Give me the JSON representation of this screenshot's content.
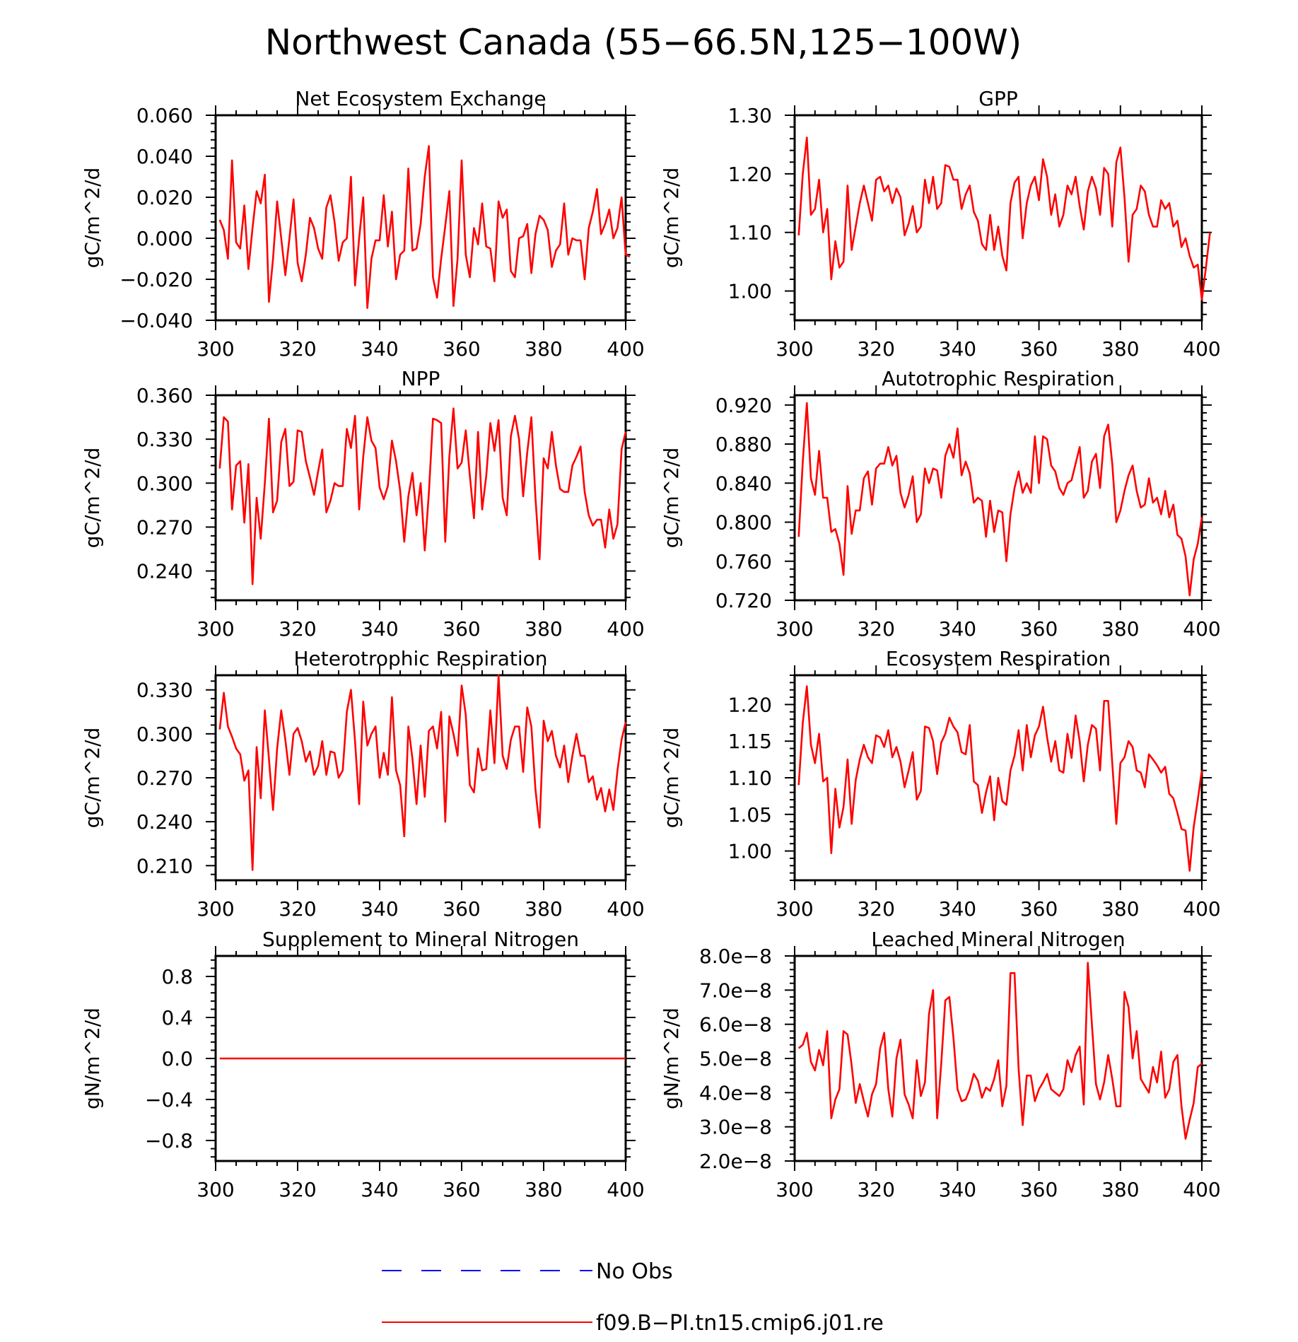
{
  "title": "Northwest Canada (55−66.5N,125−100W)",
  "legend": [
    {
      "label": "No Obs",
      "color": "#0000ff",
      "style": "dashed"
    },
    {
      "label": "f09.B−PI.tn15.cmip6.j01.re",
      "color": "#ff0000",
      "style": "solid"
    }
  ],
  "chart_data": [
    {
      "type": "line",
      "title": "Net Ecosystem Exchange",
      "ylabel": "gC/m^2/d",
      "xlim": [
        300,
        400
      ],
      "ylim": [
        -0.04,
        0.06
      ],
      "xticks": [
        "300",
        "320",
        "340",
        "360",
        "380",
        "400"
      ],
      "yticks": [
        "−0.040",
        "−0.020",
        "0.000",
        "0.020",
        "0.040",
        "0.060"
      ],
      "x_start": 301,
      "series": [
        {
          "color": "#ff0000",
          "values": [
            0.009,
            0.004,
            -0.01,
            0.038,
            -0.002,
            -0.005,
            0.016,
            -0.015,
            0.005,
            0.023,
            0.017,
            0.031,
            -0.031,
            -0.01,
            0.018,
            0.0,
            -0.018,
            0.0,
            0.019,
            -0.012,
            -0.021,
            -0.008,
            0.01,
            0.005,
            -0.005,
            -0.01,
            0.015,
            0.021,
            0.008,
            -0.011,
            -0.002,
            0.0,
            0.03,
            -0.023,
            0.0,
            0.02,
            -0.034,
            -0.01,
            -0.001,
            -0.001,
            0.021,
            -0.004,
            0.013,
            -0.02,
            -0.008,
            -0.006,
            0.034,
            -0.006,
            -0.005,
            0.007,
            0.03,
            0.045,
            -0.019,
            -0.029,
            -0.01,
            0.006,
            0.023,
            -0.033,
            -0.01,
            0.038,
            -0.008,
            -0.019,
            0.005,
            -0.003,
            0.017,
            -0.004,
            -0.005,
            -0.021,
            0.018,
            0.01,
            0.014,
            -0.016,
            -0.019,
            0.0,
            0.001,
            0.007,
            -0.017,
            0.002,
            0.011,
            0.009,
            0.004,
            -0.014,
            -0.006,
            -0.003,
            0.017,
            -0.008,
            0.0,
            -0.001,
            -0.001,
            -0.02,
            0.005,
            0.013,
            0.024,
            0.002,
            0.007,
            0.014,
            0.0,
            0.005,
            0.02,
            -0.008,
            -0.009
          ]
        }
      ]
    },
    {
      "type": "line",
      "title": "GPP",
      "ylabel": "gC/m^2/d",
      "xlim": [
        300,
        400
      ],
      "ylim": [
        0.95,
        1.3
      ],
      "xticks": [
        "300",
        "320",
        "340",
        "360",
        "380",
        "400"
      ],
      "yticks": [
        "1.00",
        "1.10",
        "1.20",
        "1.30"
      ],
      "x_start": 301,
      "series": [
        {
          "color": "#ff0000",
          "values": [
            1.095,
            1.2,
            1.262,
            1.13,
            1.14,
            1.19,
            1.1,
            1.14,
            1.02,
            1.085,
            1.04,
            1.05,
            1.18,
            1.07,
            1.11,
            1.15,
            1.18,
            1.15,
            1.12,
            1.19,
            1.195,
            1.17,
            1.18,
            1.15,
            1.175,
            1.16,
            1.095,
            1.115,
            1.145,
            1.1,
            1.11,
            1.19,
            1.15,
            1.195,
            1.14,
            1.15,
            1.215,
            1.212,
            1.19,
            1.19,
            1.14,
            1.165,
            1.18,
            1.135,
            1.12,
            1.08,
            1.07,
            1.13,
            1.07,
            1.11,
            1.06,
            1.035,
            1.15,
            1.185,
            1.195,
            1.09,
            1.15,
            1.18,
            1.195,
            1.155,
            1.225,
            1.195,
            1.13,
            1.165,
            1.11,
            1.13,
            1.18,
            1.165,
            1.195,
            1.145,
            1.105,
            1.17,
            1.195,
            1.175,
            1.13,
            1.21,
            1.2,
            1.11,
            1.22,
            1.245,
            1.16,
            1.05,
            1.13,
            1.14,
            1.18,
            1.17,
            1.13,
            1.11,
            1.11,
            1.155,
            1.14,
            1.15,
            1.11,
            1.12,
            1.075,
            1.09,
            1.06,
            1.04,
            1.045,
            0.985,
            1.04,
            1.1
          ]
        }
      ]
    },
    {
      "type": "line",
      "title": "NPP",
      "ylabel": "gC/m^2/d",
      "xlim": [
        300,
        400
      ],
      "ylim": [
        0.22,
        0.36
      ],
      "xticks": [
        "300",
        "320",
        "340",
        "360",
        "380",
        "400"
      ],
      "yticks": [
        "0.240",
        "0.270",
        "0.300",
        "0.330",
        "0.360"
      ],
      "x_start": 301,
      "series": [
        {
          "color": "#ff0000",
          "values": [
            0.31,
            0.345,
            0.342,
            0.282,
            0.312,
            0.315,
            0.273,
            0.313,
            0.231,
            0.29,
            0.262,
            0.3,
            0.344,
            0.28,
            0.288,
            0.328,
            0.337,
            0.298,
            0.301,
            0.336,
            0.335,
            0.315,
            0.304,
            0.292,
            0.308,
            0.323,
            0.28,
            0.288,
            0.3,
            0.298,
            0.298,
            0.337,
            0.324,
            0.346,
            0.282,
            0.318,
            0.345,
            0.329,
            0.324,
            0.297,
            0.289,
            0.298,
            0.329,
            0.315,
            0.295,
            0.26,
            0.291,
            0.307,
            0.278,
            0.3,
            0.254,
            0.293,
            0.344,
            0.343,
            0.341,
            0.26,
            0.318,
            0.351,
            0.31,
            0.314,
            0.336,
            0.305,
            0.276,
            0.335,
            0.282,
            0.305,
            0.341,
            0.322,
            0.343,
            0.29,
            0.278,
            0.332,
            0.346,
            0.33,
            0.291,
            0.321,
            0.345,
            0.29,
            0.248,
            0.317,
            0.31,
            0.335,
            0.312,
            0.296,
            0.294,
            0.294,
            0.312,
            0.318,
            0.325,
            0.294,
            0.278,
            0.271,
            0.275,
            0.275,
            0.256,
            0.282,
            0.262,
            0.272,
            0.323,
            0.335
          ]
        }
      ]
    },
    {
      "type": "line",
      "title": "Autotrophic Respiration",
      "ylabel": "gC/m^2/d",
      "xlim": [
        300,
        400
      ],
      "ylim": [
        0.72,
        0.93
      ],
      "xticks": [
        "300",
        "320",
        "340",
        "360",
        "380",
        "400"
      ],
      "yticks": [
        "0.720",
        "0.760",
        "0.800",
        "0.840",
        "0.880",
        "0.920"
      ],
      "x_start": 301,
      "series": [
        {
          "color": "#ff0000",
          "values": [
            0.785,
            0.862,
            0.922,
            0.845,
            0.828,
            0.873,
            0.825,
            0.825,
            0.79,
            0.793,
            0.778,
            0.746,
            0.837,
            0.788,
            0.812,
            0.812,
            0.845,
            0.852,
            0.818,
            0.855,
            0.86,
            0.86,
            0.877,
            0.858,
            0.868,
            0.83,
            0.815,
            0.828,
            0.847,
            0.8,
            0.808,
            0.855,
            0.84,
            0.855,
            0.853,
            0.825,
            0.868,
            0.88,
            0.866,
            0.896,
            0.848,
            0.862,
            0.85,
            0.82,
            0.825,
            0.822,
            0.785,
            0.822,
            0.79,
            0.812,
            0.81,
            0.76,
            0.808,
            0.835,
            0.852,
            0.83,
            0.84,
            0.83,
            0.888,
            0.84,
            0.888,
            0.885,
            0.858,
            0.852,
            0.835,
            0.828,
            0.84,
            0.843,
            0.86,
            0.877,
            0.825,
            0.832,
            0.862,
            0.87,
            0.835,
            0.888,
            0.9,
            0.86,
            0.8,
            0.812,
            0.832,
            0.848,
            0.858,
            0.832,
            0.815,
            0.818,
            0.845,
            0.82,
            0.825,
            0.808,
            0.832,
            0.805,
            0.818,
            0.787,
            0.783,
            0.765,
            0.725,
            0.762,
            0.778,
            0.805
          ]
        }
      ]
    },
    {
      "type": "line",
      "title": "Heterotrophic Respiration",
      "ylabel": "gC/m^2/d",
      "xlim": [
        300,
        400
      ],
      "ylim": [
        0.2,
        0.34
      ],
      "xticks": [
        "300",
        "320",
        "340",
        "360",
        "380",
        "400"
      ],
      "yticks": [
        "0.210",
        "0.240",
        "0.270",
        "0.300",
        "0.330"
      ],
      "x_start": 301,
      "series": [
        {
          "color": "#ff0000",
          "values": [
            0.303,
            0.328,
            0.305,
            0.298,
            0.29,
            0.286,
            0.268,
            0.275,
            0.207,
            0.291,
            0.256,
            0.316,
            0.283,
            0.248,
            0.29,
            0.316,
            0.296,
            0.272,
            0.3,
            0.304,
            0.295,
            0.281,
            0.288,
            0.272,
            0.278,
            0.295,
            0.272,
            0.288,
            0.287,
            0.27,
            0.275,
            0.315,
            0.33,
            0.295,
            0.252,
            0.322,
            0.292,
            0.3,
            0.305,
            0.27,
            0.287,
            0.272,
            0.325,
            0.275,
            0.265,
            0.23,
            0.305,
            0.283,
            0.252,
            0.292,
            0.257,
            0.302,
            0.305,
            0.29,
            0.315,
            0.24,
            0.312,
            0.3,
            0.285,
            0.333,
            0.313,
            0.265,
            0.26,
            0.29,
            0.275,
            0.276,
            0.316,
            0.28,
            0.34,
            0.285,
            0.276,
            0.296,
            0.305,
            0.305,
            0.274,
            0.318,
            0.305,
            0.262,
            0.236,
            0.309,
            0.295,
            0.302,
            0.285,
            0.277,
            0.292,
            0.267,
            0.285,
            0.3,
            0.285,
            0.285,
            0.267,
            0.271,
            0.255,
            0.263,
            0.247,
            0.262,
            0.248,
            0.275,
            0.296,
            0.308
          ]
        }
      ]
    },
    {
      "type": "line",
      "title": "Ecosystem Respiration",
      "ylabel": "gC/m^2/d",
      "xlim": [
        300,
        400
      ],
      "ylim": [
        0.96,
        1.24
      ],
      "xticks": [
        "300",
        "320",
        "340",
        "360",
        "380",
        "400"
      ],
      "yticks": [
        "1.00",
        "1.05",
        "1.10",
        "1.15",
        "1.20"
      ],
      "x_start": 301,
      "series": [
        {
          "color": "#ff0000",
          "values": [
            1.09,
            1.175,
            1.225,
            1.145,
            1.12,
            1.16,
            1.095,
            1.1,
            0.997,
            1.085,
            1.032,
            1.06,
            1.125,
            1.037,
            1.097,
            1.125,
            1.145,
            1.128,
            1.12,
            1.158,
            1.155,
            1.142,
            1.165,
            1.128,
            1.142,
            1.122,
            1.087,
            1.11,
            1.135,
            1.07,
            1.082,
            1.17,
            1.168,
            1.15,
            1.105,
            1.148,
            1.16,
            1.182,
            1.17,
            1.162,
            1.135,
            1.132,
            1.172,
            1.095,
            1.09,
            1.052,
            1.08,
            1.102,
            1.042,
            1.1,
            1.068,
            1.063,
            1.11,
            1.13,
            1.165,
            1.11,
            1.172,
            1.128,
            1.158,
            1.17,
            1.197,
            1.155,
            1.122,
            1.15,
            1.11,
            1.107,
            1.16,
            1.127,
            1.185,
            1.15,
            1.095,
            1.145,
            1.172,
            1.167,
            1.11,
            1.205,
            1.205,
            1.12,
            1.037,
            1.12,
            1.128,
            1.15,
            1.142,
            1.11,
            1.107,
            1.087,
            1.132,
            1.125,
            1.117,
            1.107,
            1.115,
            1.078,
            1.072,
            1.052,
            1.03,
            1.028,
            0.973,
            1.033,
            1.07,
            1.11
          ]
        }
      ]
    },
    {
      "type": "line",
      "title": "Supplement to Mineral Nitrogen",
      "ylabel": "gN/m^2/d",
      "xlim": [
        300,
        400
      ],
      "ylim": [
        -1.0,
        1.0
      ],
      "xticks": [
        "300",
        "320",
        "340",
        "360",
        "380",
        "400"
      ],
      "yticks": [
        "−0.8",
        "−0.4",
        "0.0",
        "0.4",
        "0.8"
      ],
      "x_start": 301,
      "series": [
        {
          "color": "#ff0000",
          "values": [
            0,
            0,
            0,
            0,
            0,
            0,
            0,
            0,
            0,
            0,
            0,
            0,
            0,
            0,
            0,
            0,
            0,
            0,
            0,
            0,
            0,
            0,
            0,
            0,
            0,
            0,
            0,
            0,
            0,
            0,
            0,
            0,
            0,
            0,
            0,
            0,
            0,
            0,
            0,
            0,
            0,
            0,
            0,
            0,
            0,
            0,
            0,
            0,
            0,
            0,
            0,
            0,
            0,
            0,
            0,
            0,
            0,
            0,
            0,
            0,
            0,
            0,
            0,
            0,
            0,
            0,
            0,
            0,
            0,
            0,
            0,
            0,
            0,
            0,
            0,
            0,
            0,
            0,
            0,
            0,
            0,
            0,
            0,
            0,
            0,
            0,
            0,
            0,
            0,
            0,
            0,
            0,
            0,
            0,
            0,
            0,
            0,
            0,
            0,
            0
          ]
        }
      ]
    },
    {
      "type": "line",
      "title": "Leached Mineral Nitrogen",
      "ylabel": "gN/m^2/d",
      "xlim": [
        300,
        400
      ],
      "ylim": [
        2e-08,
        8e-08
      ],
      "xticks": [
        "300",
        "320",
        "340",
        "360",
        "380",
        "400"
      ],
      "yticks": [
        "2.0e−8",
        "3.0e−8",
        "4.0e−8",
        "5.0e−8",
        "6.0e−8",
        "7.0e−8",
        "8.0e−8"
      ],
      "x_start": 301,
      "series": [
        {
          "color": "#ff0000",
          "values": [
            5.3e-08,
            5.4e-08,
            5.75e-08,
            4.9e-08,
            4.65e-08,
            5.25e-08,
            4.8e-08,
            5.8e-08,
            3.25e-08,
            3.8e-08,
            4.1e-08,
            5.8e-08,
            5.7e-08,
            4.8e-08,
            3.7e-08,
            4.25e-08,
            3.75e-08,
            3.3e-08,
            3.95e-08,
            4.25e-08,
            5.3e-08,
            5.75e-08,
            4.1e-08,
            3.3e-08,
            5e-08,
            5.55e-08,
            3.95e-08,
            3.65e-08,
            3.25e-08,
            4.95e-08,
            3.9e-08,
            4.3e-08,
            6.3e-08,
            7e-08,
            3.25e-08,
            4.85e-08,
            6.7e-08,
            6.8e-08,
            5.6e-08,
            4.1e-08,
            3.75e-08,
            3.8e-08,
            4.1e-08,
            4.55e-08,
            4.35e-08,
            3.85e-08,
            4.15e-08,
            4.05e-08,
            4.4e-08,
            4.95e-08,
            3.6e-08,
            4.2e-08,
            7.5e-08,
            7.5e-08,
            4.7e-08,
            3.05e-08,
            4.5e-08,
            4.5e-08,
            3.75e-08,
            4.1e-08,
            4.3e-08,
            4.55e-08,
            4.1e-08,
            4e-08,
            3.9e-08,
            4.1e-08,
            4.95e-08,
            4.6e-08,
            5.1e-08,
            5.35e-08,
            3.65e-08,
            7.8e-08,
            6e-08,
            4.25e-08,
            3.8e-08,
            4.3e-08,
            5.1e-08,
            4.4e-08,
            3.6e-08,
            3.6e-08,
            6.95e-08,
            6.5e-08,
            5e-08,
            5.8e-08,
            4.4e-08,
            4.2e-08,
            4e-08,
            4.75e-08,
            4.3e-08,
            5.2e-08,
            3.85e-08,
            4.1e-08,
            4.9e-08,
            5.1e-08,
            3.6e-08,
            2.65e-08,
            3.2e-08,
            3.7e-08,
            4.75e-08,
            4.85e-08
          ]
        }
      ]
    }
  ]
}
